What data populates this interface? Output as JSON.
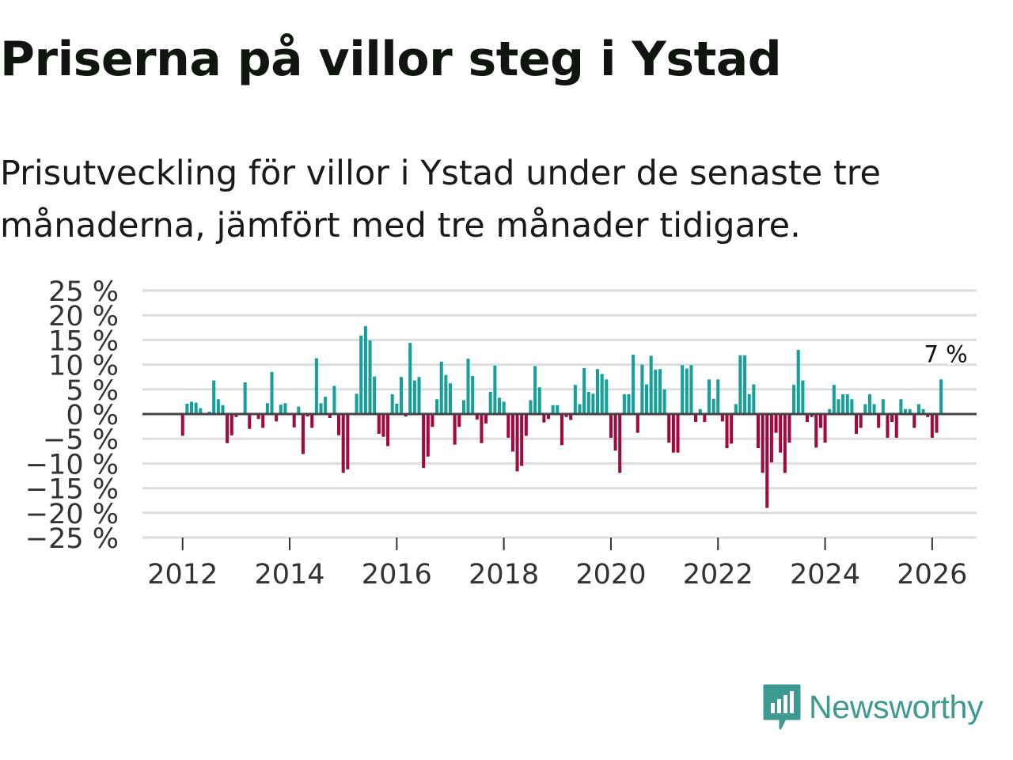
{
  "title": "Priserna på villor steg i Ystad",
  "subtitle": "Prisutveckling för villor i Ystad under de senaste tre månaderna, jämfört med tre månader tidigare.",
  "brand": "Newsworthy",
  "colors": {
    "positive": "#17a09a",
    "negative": "#a3083f",
    "grid": "#dddddd",
    "axis": "#444444",
    "brand": "#3c9a90"
  },
  "chart_data": {
    "type": "bar",
    "title": "Priserna på villor steg i Ystad",
    "xlabel": "",
    "ylabel": "",
    "ylim": [
      -25,
      25
    ],
    "y_ticks": [
      25,
      20,
      15,
      10,
      5,
      0,
      -5,
      -10,
      -15,
      -20,
      -25
    ],
    "y_tick_labels": [
      "25 %",
      "20 %",
      "15 %",
      "10 %",
      "5 %",
      "0 %",
      "−5 %",
      "−10 %",
      "−15 %",
      "−20 %",
      "−25 %"
    ],
    "x_tick_labels": [
      "2012",
      "2014",
      "2016",
      "2018",
      "2020",
      "2022",
      "2024",
      "2026"
    ],
    "x_tick_years": [
      2012,
      2014,
      2016,
      2018,
      2020,
      2022,
      2024,
      2026
    ],
    "x_start": 2011.25,
    "x_end": 2026.83,
    "last_label": "7 %",
    "series": [
      {
        "name": "Prisutveckling",
        "start_year": 2012,
        "start_month": 1,
        "values": [
          -4.4,
          2.1,
          2.5,
          2.3,
          1.2,
          0,
          0.5,
          6.8,
          3.0,
          1.8,
          -5.9,
          -4.3,
          -0.6,
          0,
          6.4,
          -3.0,
          0,
          -1.0,
          -2.8,
          2.2,
          8.5,
          -1.5,
          1.9,
          2.2,
          0,
          -2.7,
          1.5,
          -8.1,
          -0.5,
          -2.8,
          11.3,
          2.2,
          3.5,
          -0.8,
          5.7,
          -4.3,
          -11.9,
          -11.2,
          0,
          4.1,
          15.9,
          17.8,
          14.9,
          7.6,
          -4.0,
          -4.6,
          -6.5,
          4.0,
          2.1,
          7.5,
          -0.5,
          14.4,
          6.8,
          7.5,
          -10.9,
          -8.6,
          -2.6,
          3.0,
          10.6,
          7.9,
          6.2,
          -6.2,
          -2.6,
          2.8,
          11.2,
          7.7,
          -1.1,
          -5.9,
          -1.9,
          4.5,
          9.8,
          3.3,
          2.5,
          -4.8,
          -7.6,
          -11.6,
          -10.5,
          -4.4,
          2.8,
          9.7,
          5.4,
          -1.7,
          -1.0,
          1.8,
          1.8,
          -6.3,
          -0.6,
          -1.2,
          5.9,
          2.0,
          9.3,
          4.5,
          4.1,
          9.1,
          8.1,
          7.0,
          -4.8,
          -7.4,
          -11.9,
          4.0,
          4.0,
          12.0,
          -3.8,
          10.0,
          6.0,
          11.8,
          9.0,
          9.1,
          5.0,
          -5.8,
          -7.8,
          -7.8,
          9.9,
          9.2,
          9.9,
          -1.6,
          1.0,
          -1.6,
          7.0,
          3.1,
          7.0,
          -1.5,
          -6.9,
          -6.0,
          2.0,
          11.9,
          11.9,
          4.0,
          6.0,
          -6.9,
          -11.9,
          -19.0,
          -9.8,
          -3.8,
          -7.8,
          -11.9,
          -5.8,
          5.9,
          13.0,
          6.8,
          -1.6,
          -0.6,
          -6.8,
          -2.8,
          -5.8,
          1.0,
          5.9,
          3.0,
          4.0,
          4.0,
          3.0,
          -4.0,
          -2.8,
          2.0,
          4.0,
          2.0,
          -2.8,
          3.0,
          -4.8,
          -1.6,
          -4.8,
          3.0,
          1.0,
          1.0,
          -2.8,
          2.0,
          1.0,
          -0.6,
          -4.8,
          -3.8,
          7.0
        ]
      }
    ]
  }
}
